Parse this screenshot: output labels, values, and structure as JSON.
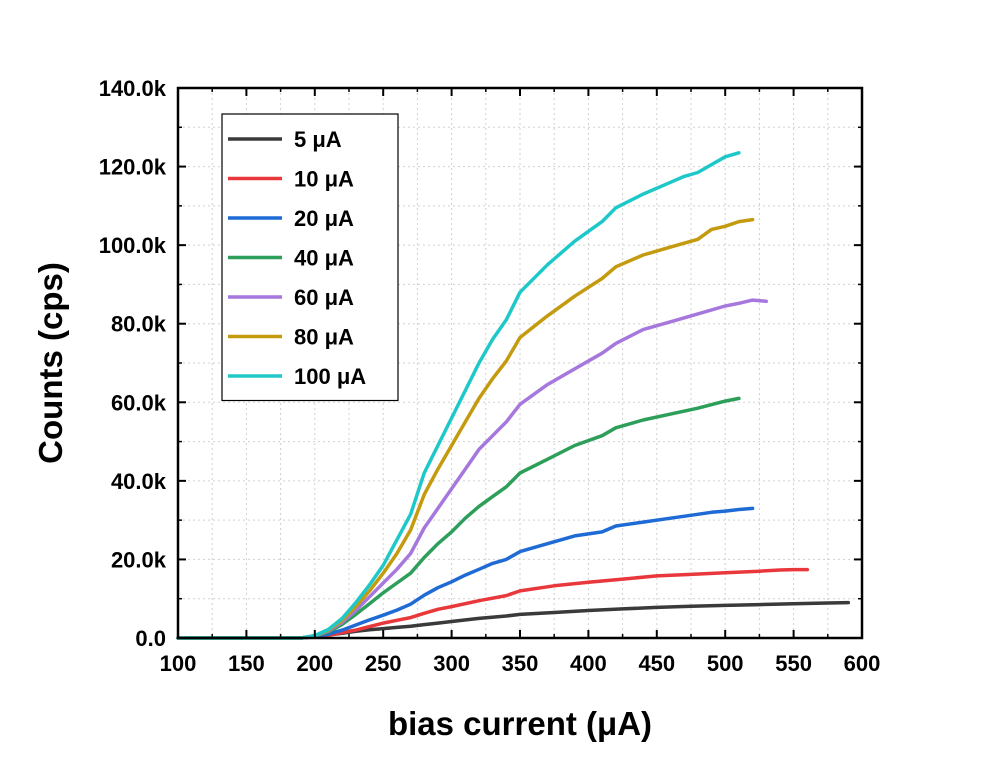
{
  "chart_data": {
    "type": "line",
    "title": "",
    "xlabel": "bias current (μA)",
    "ylabel": "Counts (cps)",
    "xlim": [
      100,
      600
    ],
    "ylim": [
      0,
      140000
    ],
    "x_ticks": [
      100,
      150,
      200,
      250,
      300,
      350,
      400,
      450,
      500,
      550,
      600
    ],
    "x_tick_labels": [
      "100",
      "150",
      "200",
      "250",
      "300",
      "350",
      "400",
      "450",
      "500",
      "550",
      "600"
    ],
    "y_ticks": [
      0,
      20000,
      40000,
      60000,
      80000,
      100000,
      120000,
      140000
    ],
    "y_tick_labels": [
      "0.0",
      "20.0k",
      "40.0k",
      "60.0k",
      "80.0k",
      "100.0k",
      "120.0k",
      "140.0k"
    ],
    "grid": true,
    "legend_position": "top-left",
    "series": [
      {
        "name": "5 μA",
        "color": "#3a3a3a",
        "x": [
          100,
          150,
          190,
          200,
          210,
          220,
          230,
          240,
          250,
          260,
          270,
          280,
          290,
          300,
          320,
          340,
          350,
          375,
          400,
          425,
          450,
          475,
          500,
          525,
          550,
          575,
          590
        ],
        "y": [
          0,
          0,
          0,
          300,
          800,
          1200,
          1700,
          2100,
          2400,
          2700,
          3000,
          3400,
          3800,
          4200,
          5000,
          5600,
          6000,
          6500,
          7000,
          7400,
          7800,
          8100,
          8300,
          8500,
          8700,
          8900,
          9000
        ]
      },
      {
        "name": "10 μA",
        "color": "#e8383b",
        "x": [
          100,
          150,
          190,
          200,
          210,
          220,
          230,
          240,
          250,
          260,
          270,
          280,
          290,
          300,
          320,
          340,
          350,
          375,
          400,
          425,
          450,
          475,
          500,
          525,
          540,
          550,
          560
        ],
        "y": [
          0,
          0,
          0,
          300,
          700,
          1400,
          2000,
          2900,
          3800,
          4500,
          5200,
          6300,
          7300,
          8000,
          9500,
          10800,
          12000,
          13300,
          14200,
          15000,
          15800,
          16200,
          16600,
          17000,
          17300,
          17400,
          17400
        ]
      },
      {
        "name": "20 μA",
        "color": "#1f6bd6",
        "x": [
          100,
          150,
          190,
          200,
          210,
          220,
          230,
          240,
          250,
          260,
          270,
          280,
          290,
          300,
          310,
          320,
          330,
          340,
          350,
          370,
          390,
          410,
          420,
          440,
          460,
          480,
          490,
          500,
          510,
          520
        ],
        "y": [
          0,
          0,
          0,
          400,
          1000,
          2000,
          3300,
          4600,
          5800,
          7100,
          8600,
          10900,
          12800,
          14300,
          16000,
          17500,
          19000,
          20000,
          22000,
          24000,
          26000,
          27000,
          28500,
          29500,
          30500,
          31500,
          32000,
          32300,
          32700,
          33000
        ]
      },
      {
        "name": "40 μA",
        "color": "#2e9e5b",
        "x": [
          100,
          150,
          190,
          200,
          210,
          220,
          230,
          240,
          250,
          260,
          270,
          280,
          290,
          300,
          310,
          320,
          330,
          340,
          350,
          370,
          390,
          410,
          420,
          440,
          460,
          480,
          500,
          510
        ],
        "y": [
          0,
          0,
          0,
          500,
          1500,
          3500,
          6000,
          8700,
          11500,
          14000,
          16500,
          20500,
          24000,
          27000,
          30500,
          33500,
          36000,
          38500,
          42000,
          45500,
          49000,
          51500,
          53500,
          55500,
          57000,
          58500,
          60300,
          61000
        ]
      },
      {
        "name": "60 μA",
        "color": "#a677dc",
        "x": [
          100,
          150,
          190,
          200,
          210,
          220,
          230,
          240,
          250,
          260,
          270,
          280,
          290,
          300,
          310,
          320,
          330,
          340,
          350,
          370,
          390,
          410,
          420,
          440,
          460,
          480,
          500,
          510,
          520,
          530
        ],
        "y": [
          0,
          0,
          0,
          500,
          1800,
          4000,
          7000,
          10500,
          14000,
          17500,
          21500,
          28000,
          33000,
          38000,
          43000,
          48000,
          51500,
          55000,
          59500,
          64500,
          68500,
          72500,
          75000,
          78500,
          80500,
          82500,
          84500,
          85200,
          86000,
          85700
        ]
      },
      {
        "name": "80 μA",
        "color": "#c49a0f",
        "x": [
          100,
          150,
          190,
          200,
          210,
          220,
          230,
          240,
          250,
          260,
          270,
          280,
          290,
          300,
          310,
          320,
          330,
          340,
          350,
          370,
          390,
          410,
          420,
          440,
          460,
          480,
          490,
          500,
          510,
          520
        ],
        "y": [
          0,
          0,
          0,
          600,
          2000,
          4500,
          8000,
          12000,
          16500,
          21500,
          27500,
          36500,
          43000,
          49000,
          55000,
          61000,
          66000,
          70500,
          76500,
          82000,
          87000,
          91500,
          94500,
          97500,
          99500,
          101500,
          104000,
          104800,
          106000,
          106500
        ]
      },
      {
        "name": "100 μA",
        "color": "#1fc8c8",
        "x": [
          100,
          150,
          190,
          200,
          210,
          220,
          230,
          240,
          250,
          260,
          270,
          280,
          290,
          300,
          310,
          320,
          330,
          340,
          350,
          370,
          390,
          410,
          420,
          440,
          460,
          470,
          480,
          490,
          500,
          510
        ],
        "y": [
          0,
          0,
          0,
          600,
          2200,
          5000,
          9000,
          13500,
          18500,
          25000,
          31500,
          42000,
          49000,
          56000,
          63000,
          70000,
          76000,
          81000,
          88000,
          95000,
          101000,
          106000,
          109500,
          113000,
          116000,
          117500,
          118500,
          120500,
          122500,
          123500
        ]
      }
    ]
  }
}
